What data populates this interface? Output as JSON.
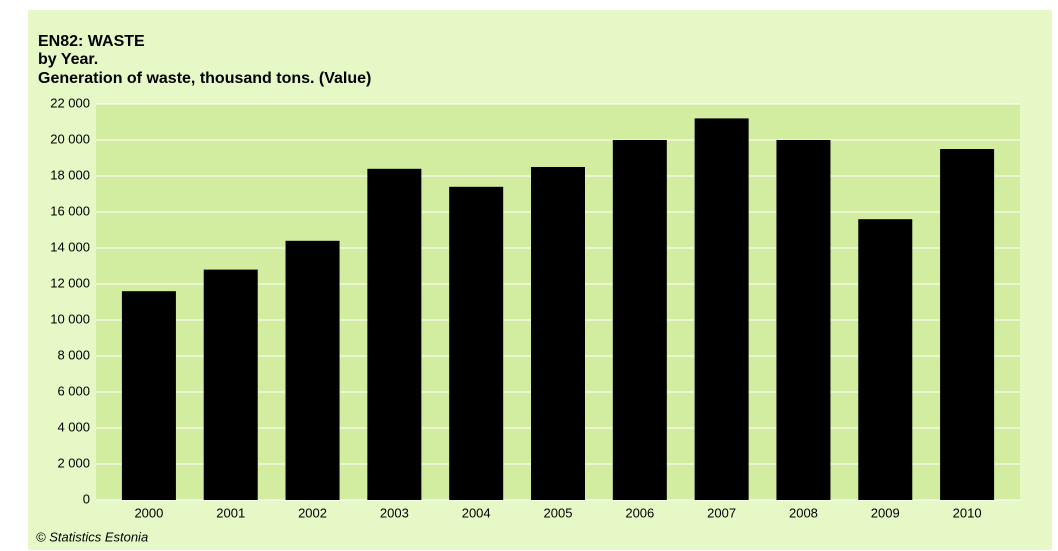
{
  "chart_data": {
    "type": "bar",
    "title": "EN82: WASTE",
    "subtitle": "by Year.",
    "y_label": "Generation of waste, thousand tons. (Value)",
    "source": "© Statistics Estonia",
    "categories": [
      "2000",
      "2001",
      "2002",
      "2003",
      "2004",
      "2005",
      "2006",
      "2007",
      "2008",
      "2009",
      "2010"
    ],
    "values": [
      11600,
      12800,
      14400,
      18400,
      17400,
      18500,
      20000,
      21200,
      20000,
      15600,
      19500
    ],
    "color": "#000000",
    "ylim": [
      0,
      22000
    ],
    "yticks": [
      0,
      {
        "value": 2000,
        "label": "2 000"
      },
      {
        "value": 4000,
        "label": "4 000"
      },
      {
        "value": 6000,
        "label": "6 000"
      },
      {
        "value": 8000,
        "label": "8 000"
      },
      {
        "value": 10000,
        "label": "10 000"
      },
      {
        "value": 12000,
        "label": "12 000"
      },
      {
        "value": 14000,
        "label": "14 000"
      },
      {
        "value": 16000,
        "label": "16 000"
      },
      {
        "value": 18000,
        "label": "18 000"
      },
      {
        "value": 20000,
        "label": "20 000"
      },
      {
        "value": 22000,
        "label": "22 000"
      }
    ],
    "grid": true
  }
}
